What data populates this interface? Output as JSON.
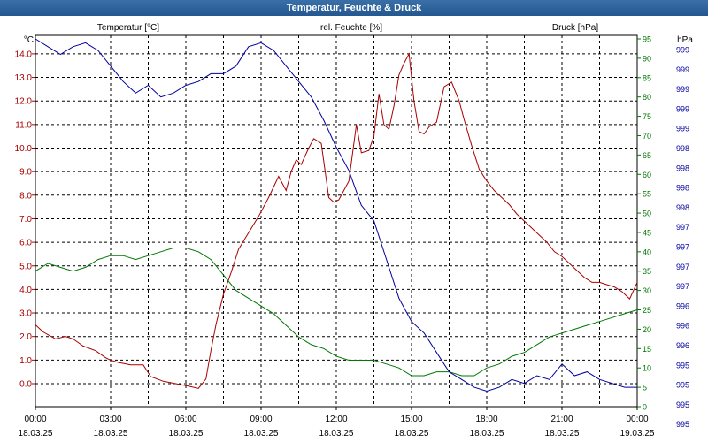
{
  "window": {
    "title": "Temperatur, Feuchte & Druck"
  },
  "colors": {
    "temperature": "#a80000",
    "humidity": "#007800",
    "pressure": "#0000a0",
    "grid": "#000000"
  },
  "chart_data": {
    "type": "line",
    "title": "Temperatur, Feuchte & Druck",
    "grid": true,
    "x_ticks": [
      {
        "time": "00:00",
        "date": "18.03.25"
      },
      {
        "time": "03:00",
        "date": "18.03.25"
      },
      {
        "time": "06:00",
        "date": "18.03.25"
      },
      {
        "time": "09:00",
        "date": "18.03.25"
      },
      {
        "time": "12:00",
        "date": "18.03.25"
      },
      {
        "time": "15:00",
        "date": "18.03.25"
      },
      {
        "time": "18:00",
        "date": "18.03.25"
      },
      {
        "time": "21:00",
        "date": "18.03.25"
      },
      {
        "time": "00:00",
        "date": "19.03.25"
      }
    ],
    "xlim": [
      0,
      24
    ],
    "axes": {
      "temperature": {
        "label": "Temperatur [°C]",
        "unit": "°C",
        "ylim": [
          -1,
          14.8
        ],
        "ticks": [
          "0.0",
          "1.0",
          "2.0",
          "3.0",
          "4.0",
          "5.0",
          "6.0",
          "7.0",
          "8.0",
          "9.0",
          "10.0",
          "11.0",
          "12.0",
          "13.0",
          "14.0"
        ]
      },
      "humidity": {
        "label": "rel. Feuchte [%]",
        "unit": "%",
        "ylim": [
          0,
          100
        ],
        "ticks": [
          "0",
          "5",
          "10",
          "15",
          "20",
          "25",
          "30",
          "35",
          "40",
          "45",
          "50",
          "55",
          "60",
          "65",
          "70",
          "75",
          "80",
          "85",
          "90",
          "95"
        ]
      },
      "pressure": {
        "label": "Druck [hPa]",
        "unit": "hPa",
        "ticks": [
          "995",
          "995",
          "995",
          "995",
          "996",
          "996",
          "996",
          "997",
          "997",
          "997",
          "997",
          "998",
          "998",
          "998",
          "998",
          "999",
          "999",
          "999",
          "999",
          "999"
        ]
      }
    },
    "series": [
      {
        "name": "Temperatur [°C]",
        "axis": "temperature",
        "x": [
          0,
          0.3,
          0.8,
          1.2,
          1.5,
          1.9,
          2.4,
          2.8,
          3.0,
          3.3,
          3.8,
          4.3,
          4.6,
          5.1,
          5.6,
          6.1,
          6.5,
          6.8,
          7.0,
          7.2,
          7.5,
          7.8,
          8.1,
          8.5,
          8.9,
          9.3,
          9.7,
          10.0,
          10.2,
          10.4,
          10.6,
          10.9,
          11.1,
          11.4,
          11.7,
          11.9,
          12.1,
          12.3,
          12.5,
          12.8,
          13.0,
          13.3,
          13.5,
          13.7,
          13.9,
          14.1,
          14.3,
          14.5,
          14.7,
          14.9,
          15.1,
          15.3,
          15.5,
          15.7,
          16.0,
          16.3,
          16.6,
          16.9,
          17.1,
          17.4,
          17.7,
          18.0,
          18.3,
          18.6,
          18.9,
          19.2,
          19.5,
          19.8,
          20.1,
          20.4,
          20.7,
          21.0,
          21.3,
          21.6,
          21.9,
          22.2,
          22.5,
          22.8,
          23.1,
          23.4,
          23.7,
          24.0
        ],
        "y": [
          2.5,
          2.2,
          1.9,
          2.0,
          1.9,
          1.6,
          1.4,
          1.1,
          1.0,
          0.9,
          0.8,
          0.8,
          0.3,
          0.1,
          0.0,
          -0.1,
          -0.2,
          0.2,
          1.4,
          2.5,
          3.8,
          4.7,
          5.7,
          6.4,
          7.1,
          7.9,
          8.8,
          8.2,
          9.0,
          9.5,
          9.3,
          10.0,
          10.4,
          10.2,
          7.9,
          7.7,
          7.8,
          8.2,
          8.6,
          11.0,
          9.8,
          9.9,
          10.5,
          12.3,
          11.0,
          10.8,
          11.8,
          13.1,
          13.6,
          14.0,
          12.0,
          10.7,
          10.6,
          10.9,
          11.1,
          12.6,
          12.8,
          12.0,
          11.2,
          10.1,
          9.1,
          8.6,
          8.2,
          7.9,
          7.6,
          7.2,
          6.9,
          6.6,
          6.3,
          6.0,
          5.6,
          5.4,
          5.1,
          4.8,
          4.5,
          4.3,
          4.3,
          4.2,
          4.1,
          3.9,
          3.6,
          4.3
        ]
      },
      {
        "name": "rel. Feuchte [%]",
        "axis": "humidity",
        "x": [
          0,
          0.5,
          1.0,
          1.5,
          2.0,
          2.5,
          3.0,
          3.5,
          4.0,
          4.5,
          5.0,
          5.5,
          6.0,
          6.5,
          7.0,
          7.5,
          8.0,
          8.5,
          9.0,
          9.5,
          10.0,
          10.5,
          11.0,
          11.5,
          12.0,
          12.5,
          13.0,
          13.5,
          14.0,
          14.5,
          15.0,
          15.5,
          16.0,
          16.5,
          17.0,
          17.5,
          18.0,
          18.5,
          19.0,
          19.5,
          20.0,
          20.5,
          21.0,
          21.5,
          22.0,
          22.5,
          23.0,
          23.5,
          24.0
        ],
        "y": [
          35,
          37,
          36,
          35,
          36,
          38,
          39,
          39,
          38,
          39,
          40,
          41,
          41,
          40,
          38,
          34,
          30,
          28,
          26,
          24,
          21,
          18,
          16,
          15,
          13,
          12,
          12,
          12,
          11,
          10,
          8,
          8,
          9,
          9,
          8,
          8,
          10,
          11,
          13,
          14,
          16,
          18,
          19,
          20,
          21,
          22,
          23,
          24,
          25
        ]
      },
      {
        "name": "Druck [hPa]",
        "axis": "pressure",
        "x": [
          0,
          0.5,
          1.0,
          1.5,
          2.0,
          2.5,
          3.0,
          3.5,
          4.0,
          4.5,
          5.0,
          5.5,
          6.0,
          6.5,
          7.0,
          7.5,
          8.0,
          8.5,
          9.0,
          9.5,
          10.0,
          10.5,
          11.0,
          11.5,
          12.0,
          12.5,
          13.0,
          13.5,
          14.0,
          14.5,
          15.0,
          15.5,
          16.0,
          16.5,
          17.0,
          17.5,
          18.0,
          18.5,
          19.0,
          19.5,
          20.0,
          20.5,
          21.0,
          21.5,
          22.0,
          22.5,
          23.0,
          23.5,
          24.0
        ],
        "y": [
          95,
          93,
          91,
          93,
          94,
          92,
          88,
          84,
          81,
          83,
          80,
          81,
          83,
          84,
          86,
          86,
          88,
          93,
          94,
          92,
          88,
          84,
          80,
          74,
          67,
          61,
          52,
          48,
          38,
          28,
          22,
          19,
          14,
          9,
          7,
          5,
          4,
          5,
          7,
          6,
          8,
          7,
          11,
          8,
          9,
          7,
          6,
          5,
          5
        ]
      }
    ]
  }
}
